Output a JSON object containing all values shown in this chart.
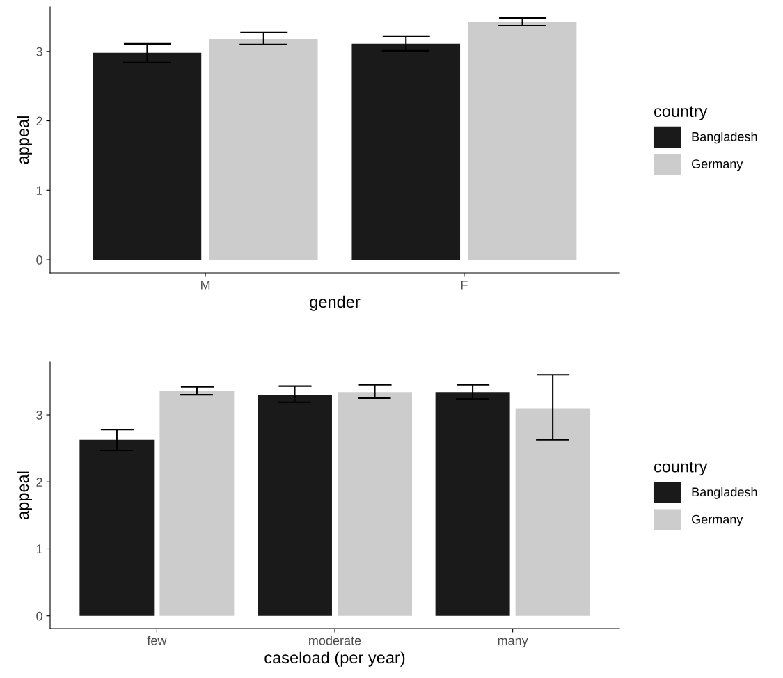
{
  "chart_data": [
    {
      "type": "bar",
      "xlabel": "gender",
      "ylabel": "appeal",
      "legend_title": "country",
      "legend": "right",
      "grid": false,
      "categories": [
        "M",
        "F"
      ],
      "ylim": [
        -0.19,
        3.64
      ],
      "yticks": [
        0,
        1,
        2,
        3
      ],
      "series": [
        {
          "name": "Bangladesh",
          "color": "#1a1a1a",
          "values": [
            2.98,
            3.11
          ],
          "errors": [
            [
              2.84,
              3.11
            ],
            [
              3.01,
              3.22
            ]
          ]
        },
        {
          "name": "Germany",
          "color": "#cccccc",
          "values": [
            3.18,
            3.42
          ],
          "errors": [
            [
              3.1,
              3.27
            ],
            [
              3.37,
              3.48
            ]
          ]
        }
      ]
    },
    {
      "type": "bar",
      "xlabel": "caseload (per year)",
      "ylabel": "appeal",
      "legend_title": "country",
      "legend": "right",
      "grid": false,
      "categories": [
        "few",
        "moderate",
        "many"
      ],
      "ylim": [
        -0.19,
        3.79
      ],
      "yticks": [
        0,
        1,
        2,
        3
      ],
      "series": [
        {
          "name": "Bangladesh",
          "color": "#1a1a1a",
          "values": [
            2.63,
            3.3,
            3.34
          ],
          "errors": [
            [
              2.47,
              2.78
            ],
            [
              3.19,
              3.43
            ],
            [
              3.24,
              3.45
            ]
          ]
        },
        {
          "name": "Germany",
          "color": "#cccccc",
          "values": [
            3.36,
            3.34,
            3.1
          ],
          "errors": [
            [
              3.3,
              3.42
            ],
            [
              3.25,
              3.45
            ],
            [
              2.63,
              3.6
            ]
          ]
        }
      ]
    }
  ]
}
